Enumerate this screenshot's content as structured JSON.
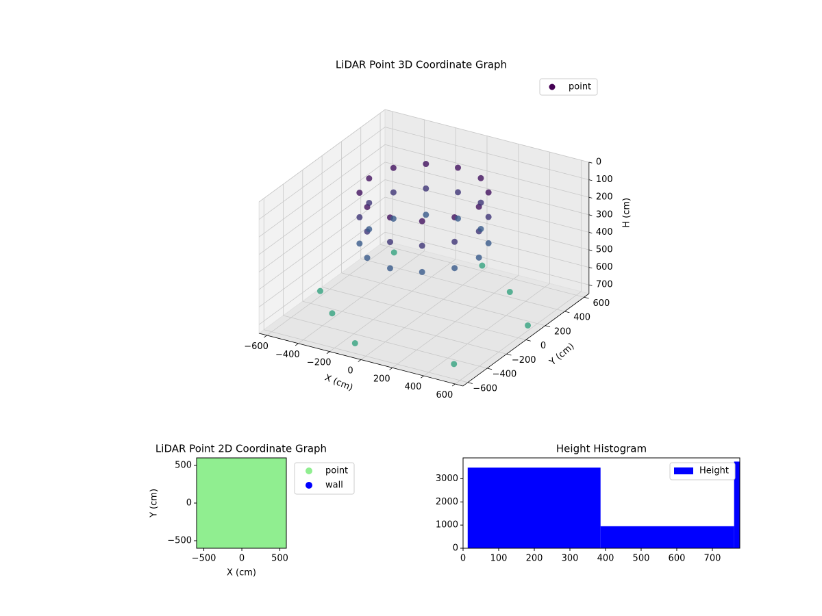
{
  "chart_data": [
    {
      "type": "scatter3d",
      "title": "LiDAR Point 3D Coordinate Graph",
      "xlabel": "X (cm)",
      "ylabel": "Y (cm)",
      "zlabel": "H (cm)",
      "xlim": [
        -650,
        650
      ],
      "ylim": [
        -650,
        650
      ],
      "zlim": [
        0,
        750
      ],
      "z_inverted": true,
      "cmap": "viridis",
      "grid": true,
      "xticks": [
        {
          "value": -600,
          "label": "−600"
        },
        {
          "value": -400,
          "label": "−400"
        },
        {
          "value": -200,
          "label": "−200"
        },
        0,
        200,
        400,
        600
      ],
      "yticks": [
        {
          "value": -600,
          "label": "−600"
        },
        {
          "value": -400,
          "label": "−400"
        },
        {
          "value": -200,
          "label": "−200"
        },
        0,
        200,
        400,
        600
      ],
      "zticks": [
        0,
        100,
        200,
        300,
        400,
        500,
        600,
        700
      ],
      "legend": "upper right",
      "series": [
        {
          "name": "point",
          "color": "#440154",
          "x": [
            350,
            303,
            175,
            0,
            -175,
            -303,
            -350,
            -303,
            -175,
            0,
            175,
            303,
            350,
            303,
            175,
            0,
            -175,
            -303,
            -350,
            -303,
            -175,
            0,
            175,
            303,
            350,
            303,
            175,
            0,
            -175,
            -303,
            -350,
            -303,
            -175,
            0,
            175,
            303,
            -500,
            500,
            -400,
            300,
            600,
            -100,
            0,
            -600
          ],
          "y": [
            0,
            175,
            303,
            350,
            303,
            175,
            0,
            -175,
            -303,
            -350,
            -303,
            -175,
            0,
            175,
            303,
            350,
            303,
            175,
            0,
            -175,
            -303,
            -350,
            -303,
            -175,
            0,
            175,
            303,
            350,
            303,
            175,
            0,
            -175,
            -303,
            -350,
            -303,
            -175,
            500,
            -500,
            -300,
            400,
            100,
            -550,
            600,
            -100
          ],
          "z": [
            60,
            60,
            60,
            60,
            60,
            60,
            60,
            60,
            60,
            60,
            60,
            60,
            200,
            200,
            200,
            200,
            200,
            200,
            200,
            200,
            200,
            200,
            200,
            200,
            350,
            350,
            350,
            350,
            350,
            350,
            350,
            350,
            350,
            350,
            350,
            350,
            720,
            720,
            720,
            720,
            720,
            720,
            720,
            720
          ]
        }
      ]
    },
    {
      "type": "scatter",
      "title": "LiDAR Point 2D Coordinate Graph",
      "xlabel": "X (cm)",
      "ylabel": "Y (cm)",
      "xlim": [
        -595,
        585
      ],
      "ylim": [
        -600,
        600
      ],
      "xticks": [
        {
          "value": -500,
          "label": "−500"
        },
        0,
        500
      ],
      "yticks": [
        {
          "value": -500,
          "label": "−500"
        },
        0,
        500
      ],
      "legend": "outside right",
      "series": [
        {
          "name": "point",
          "color": "#90ee90",
          "x": [
            -600,
            -400,
            -200,
            0,
            200,
            400,
            600,
            -600,
            -400,
            -200,
            0,
            200,
            400,
            600,
            -600,
            -400,
            -200,
            0,
            200,
            400,
            600,
            -600,
            -400,
            -200,
            0,
            200,
            400,
            600,
            -600,
            -400,
            -200,
            0,
            200,
            400,
            600,
            -600,
            -400,
            -200,
            0,
            200,
            400,
            600,
            -600,
            -400,
            -200,
            0,
            200,
            400,
            600
          ],
          "y": [
            -600,
            -600,
            -600,
            -600,
            -600,
            -600,
            -600,
            -400,
            -400,
            -400,
            -400,
            -400,
            -400,
            -400,
            -200,
            -200,
            -200,
            -200,
            -200,
            -200,
            -200,
            0,
            0,
            0,
            0,
            0,
            0,
            0,
            200,
            200,
            200,
            200,
            200,
            200,
            200,
            400,
            400,
            400,
            400,
            400,
            400,
            400,
            600,
            600,
            600,
            600,
            600,
            600,
            600
          ]
        },
        {
          "name": "wall",
          "color": "#0000ff",
          "x": [],
          "y": []
        }
      ]
    },
    {
      "type": "histogram",
      "title": "Height Histogram",
      "xlim": [
        0,
        777
      ],
      "ylim": [
        0,
        3900
      ],
      "xticks": [
        0,
        100,
        200,
        300,
        400,
        500,
        600,
        700
      ],
      "yticks": [
        0,
        1000,
        2000,
        3000
      ],
      "legend": "upper right",
      "series": [
        {
          "name": "Height",
          "color": "#0000ff",
          "bins": [
            13,
            386,
            761,
            777
          ],
          "counts": [
            3480,
            950,
            3740
          ]
        }
      ]
    }
  ]
}
